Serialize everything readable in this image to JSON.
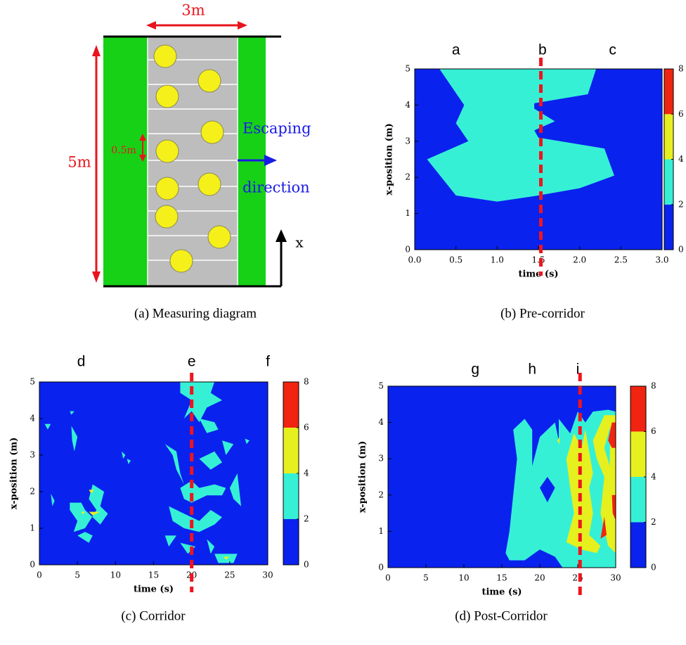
{
  "diagram": {
    "width_label": "3m",
    "height_label": "5m",
    "spacing_label": "0.5m",
    "escape_label_1": "Escaping",
    "escape_label_2": "direction",
    "axis_label": "x",
    "caption": "(a) Measuring diagram"
  },
  "chart_data": [
    {
      "type": "contour",
      "caption": "(b) Pre-corridor",
      "xlabel": "time (s)",
      "ylabel": "x-position (m)",
      "xlim": [
        0,
        3
      ],
      "ylim": [
        0,
        5
      ],
      "xticks": [
        {
          "value": 0,
          "label": "0.0"
        },
        0.5,
        {
          "value": 1,
          "label": "1.0"
        },
        1.5,
        {
          "value": 2,
          "label": "2.0"
        },
        2.5,
        {
          "value": 3,
          "label": "3.0"
        }
      ],
      "yticks": [
        0,
        1,
        2,
        3,
        4,
        5
      ],
      "colorbar": {
        "ticks": [
          0,
          2,
          4,
          6,
          8
        ],
        "colors": [
          "#0a22ee",
          "#36f0d6",
          "#e6f01e",
          "#f02410"
        ]
      },
      "marker_time": 1.53,
      "annotations": [
        {
          "text": "a",
          "x": 0.5
        },
        {
          "text": "b",
          "x": 1.55
        },
        {
          "text": "c",
          "x": 2.4
        }
      ],
      "regions": [
        {
          "band": 1,
          "points": [
            [
              0.3,
              5
            ],
            [
              0.6,
              4
            ],
            [
              0.5,
              3.5
            ],
            [
              0.65,
              3
            ],
            [
              0.15,
              2.5
            ],
            [
              0.5,
              1.5
            ],
            [
              1.0,
              1.33
            ],
            [
              1.5,
              1.5
            ],
            [
              2.0,
              1.7
            ],
            [
              2.42,
              2.05
            ],
            [
              2.3,
              2.8
            ],
            [
              1.5,
              3.1
            ],
            [
              1.45,
              3.3
            ],
            [
              1.7,
              3.55
            ],
            [
              1.45,
              3.9
            ],
            [
              1.45,
              4.05
            ],
            [
              2.1,
              4.3
            ],
            [
              2.2,
              5
            ]
          ]
        }
      ]
    },
    {
      "type": "contour",
      "caption": "(c) Corridor",
      "xlabel": "time (s)",
      "ylabel": "x-position (m)",
      "xlim": [
        0,
        30
      ],
      "ylim": [
        0,
        5
      ],
      "xticks": [
        0,
        5,
        10,
        15,
        20,
        25,
        30
      ],
      "yticks": [
        0,
        1,
        2,
        3,
        4,
        5
      ],
      "colorbar": {
        "ticks": [
          0,
          2,
          4,
          6,
          8
        ],
        "colors": [
          "#0a22ee",
          "#36f0d6",
          "#e6f01e",
          "#f02410"
        ]
      },
      "marker_time": 20,
      "annotations": [
        {
          "text": "d",
          "x": 5.5
        },
        {
          "text": "e",
          "x": 20
        },
        {
          "text": "f",
          "x": 30
        }
      ],
      "regions": [
        {
          "band": 1,
          "points": [
            [
              4,
              1.5
            ],
            [
              5,
              1.2
            ],
            [
              4.5,
              0.9
            ],
            [
              6,
              1.0
            ],
            [
              7.5,
              1.5
            ],
            [
              6.5,
              1.8
            ],
            [
              7,
              2.2
            ],
            [
              8.5,
              2.0
            ],
            [
              8,
              1.6
            ],
            [
              9,
              1.4
            ],
            [
              8,
              1.1
            ],
            [
              6,
              1.5
            ],
            [
              5.5,
              1.7
            ],
            [
              4,
              1.7
            ]
          ]
        },
        {
          "band": 1,
          "points": [
            [
              5,
              0.8
            ],
            [
              6.5,
              0.6
            ],
            [
              7,
              0.8
            ],
            [
              6,
              0.9
            ]
          ]
        },
        {
          "band": 1,
          "points": [
            [
              4.2,
              3.8
            ],
            [
              5,
              3.5
            ],
            [
              4.6,
              3.1
            ],
            [
              4.3,
              3.4
            ]
          ]
        },
        {
          "band": 1,
          "points": [
            [
              4,
              4.2
            ],
            [
              4.6,
              4.2
            ],
            [
              4.2,
              4.1
            ]
          ]
        },
        {
          "band": 1,
          "points": [
            [
              0.7,
              3.85
            ],
            [
              1.5,
              3.85
            ],
            [
              1.1,
              3.7
            ]
          ]
        },
        {
          "band": 1,
          "points": [
            [
              1.5,
              1.95
            ],
            [
              2,
              1.75
            ],
            [
              1.7,
              1.6
            ]
          ]
        },
        {
          "band": 1,
          "points": [
            [
              10.8,
              3.1
            ],
            [
              11.3,
              3.0
            ],
            [
              11,
              2.9
            ]
          ]
        },
        {
          "band": 1,
          "points": [
            [
              11.5,
              2.9
            ],
            [
              12,
              2.85
            ],
            [
              11.7,
              2.75
            ]
          ]
        },
        {
          "band": 1,
          "points": [
            [
              18.5,
              5
            ],
            [
              23,
              5
            ],
            [
              22.5,
              4.7
            ],
            [
              24,
              4.5
            ],
            [
              22,
              4.3
            ],
            [
              21,
              3.9
            ],
            [
              20,
              4.2
            ],
            [
              19,
              4.0
            ],
            [
              20,
              4.5
            ],
            [
              18.5,
              4.7
            ]
          ]
        },
        {
          "band": 1,
          "points": [
            [
              21,
              4.0
            ],
            [
              23,
              3.9
            ],
            [
              23.5,
              3.7
            ],
            [
              22,
              3.6
            ]
          ]
        },
        {
          "band": 1,
          "points": [
            [
              16.5,
              3.3
            ],
            [
              18,
              3.1
            ],
            [
              18.5,
              2.5
            ],
            [
              19,
              2.2
            ],
            [
              18,
              2.6
            ],
            [
              17.5,
              3.0
            ]
          ]
        },
        {
          "band": 1,
          "points": [
            [
              18.5,
              2.1
            ],
            [
              20,
              2.3
            ],
            [
              21,
              2.1
            ],
            [
              23,
              2.2
            ],
            [
              24.5,
              2.1
            ],
            [
              24,
              1.9
            ],
            [
              22,
              1.9
            ],
            [
              20,
              1.7
            ],
            [
              19,
              1.8
            ]
          ]
        },
        {
          "band": 1,
          "points": [
            [
              17,
              1.6
            ],
            [
              19,
              1.4
            ],
            [
              21,
              1.2
            ],
            [
              22.5,
              1.5
            ],
            [
              24,
              1.3
            ],
            [
              23,
              1.1
            ],
            [
              21,
              0.9
            ],
            [
              19,
              1.0
            ],
            [
              17.5,
              1.2
            ]
          ]
        },
        {
          "band": 1,
          "points": [
            [
              16.5,
              0.8
            ],
            [
              18,
              0.8
            ],
            [
              17,
              0.5
            ]
          ]
        },
        {
          "band": 1,
          "points": [
            [
              18.5,
              0.6
            ],
            [
              20.5,
              0.5
            ],
            [
              19.5,
              0.3
            ]
          ]
        },
        {
          "band": 1,
          "points": [
            [
              22,
              0.7
            ],
            [
              23,
              0.5
            ],
            [
              22.5,
              0.3
            ]
          ]
        },
        {
          "band": 1,
          "points": [
            [
              23,
              0.3
            ],
            [
              26,
              0.3
            ],
            [
              25.5,
              0.05
            ],
            [
              23.5,
              0.05
            ]
          ]
        },
        {
          "band": 1,
          "points": [
            [
              21,
              2.9
            ],
            [
              23,
              3.1
            ],
            [
              24,
              2.8
            ],
            [
              22.5,
              2.6
            ]
          ]
        },
        {
          "band": 1,
          "points": [
            [
              25,
              2.1
            ],
            [
              26,
              2.5
            ],
            [
              26.5,
              1.6
            ],
            [
              25.5,
              1.8
            ]
          ]
        },
        {
          "band": 1,
          "points": [
            [
              24,
              3.4
            ],
            [
              25.5,
              3.3
            ],
            [
              24.5,
              3.0
            ]
          ]
        },
        {
          "band": 1,
          "points": [
            [
              27,
              3.45
            ],
            [
              27.6,
              3.4
            ],
            [
              27.2,
              3.3
            ]
          ]
        },
        {
          "band": 2,
          "points": [
            [
              6.5,
              2.05
            ],
            [
              7.2,
              2.05
            ],
            [
              6.8,
              1.95
            ]
          ]
        },
        {
          "band": 2,
          "points": [
            [
              6.5,
              1.45
            ],
            [
              8,
              1.45
            ],
            [
              7,
              1.35
            ]
          ]
        },
        {
          "band": 2,
          "points": [
            [
              5.5,
              1.45
            ],
            [
              6,
              1.45
            ],
            [
              5.7,
              1.38
            ]
          ]
        },
        {
          "band": 2,
          "points": [
            [
              24.2,
              0.22
            ],
            [
              25,
              0.22
            ],
            [
              24.5,
              0.14
            ]
          ]
        }
      ]
    },
    {
      "type": "contour",
      "caption": "(d) Post-Corridor",
      "xlabel": "time (s)",
      "ylabel": "x-position (m)",
      "xlim": [
        0,
        30
      ],
      "ylim": [
        0,
        5
      ],
      "xticks": [
        0,
        5,
        10,
        15,
        20,
        25,
        30
      ],
      "yticks": [
        0,
        1,
        2,
        3,
        4,
        5
      ],
      "colorbar": {
        "ticks": [
          0,
          2,
          4,
          6,
          8
        ],
        "colors": [
          "#0a22ee",
          "#36f0d6",
          "#e6f01e",
          "#f02410"
        ]
      },
      "marker_time": 25.3,
      "annotations": [
        {
          "text": "g",
          "x": 11.5
        },
        {
          "text": "h",
          "x": 19
        },
        {
          "text": "i",
          "x": 25
        }
      ],
      "regions": [
        {
          "band": 1,
          "points": [
            [
              15.5,
              0.4
            ],
            [
              16,
              1.0
            ],
            [
              17,
              3.0
            ],
            [
              16.5,
              3.8
            ],
            [
              18,
              4.1
            ],
            [
              19,
              3.8
            ],
            [
              19,
              2.8
            ],
            [
              20,
              3.6
            ],
            [
              22,
              4.0
            ],
            [
              22.5,
              3.5
            ],
            [
              22.5,
              4.1
            ],
            [
              24,
              3.7
            ],
            [
              25,
              4.3
            ],
            [
              26,
              4.0
            ],
            [
              27,
              4.3
            ],
            [
              29,
              4.35
            ],
            [
              30,
              4.3
            ],
            [
              30,
              0
            ],
            [
              23,
              0
            ],
            [
              22,
              0.3
            ],
            [
              20,
              0.5
            ],
            [
              18,
              0.2
            ],
            [
              16,
              0.2
            ]
          ]
        },
        {
          "band": 0,
          "points": [
            [
              20,
              2.2
            ],
            [
              21,
              1.8
            ],
            [
              22,
              2.2
            ],
            [
              21,
              2.5
            ]
          ]
        },
        {
          "band": 2,
          "points": [
            [
              23.5,
              0.7
            ],
            [
              24.5,
              1.5
            ],
            [
              24,
              2.2
            ],
            [
              23.5,
              3.0
            ],
            [
              24.5,
              3.7
            ],
            [
              25.5,
              3.3
            ],
            [
              26,
              3.8
            ],
            [
              26.5,
              3.2
            ],
            [
              27,
              2.6
            ],
            [
              26.5,
              2.2
            ],
            [
              27,
              1.5
            ],
            [
              26.5,
              0.9
            ],
            [
              28,
              0.6
            ],
            [
              27.5,
              0.4
            ],
            [
              25.5,
              0.5
            ]
          ]
        },
        {
          "band": 2,
          "points": [
            [
              27,
              3.5
            ],
            [
              28.5,
              4.2
            ],
            [
              30,
              4.2
            ],
            [
              30,
              0.4
            ],
            [
              29,
              0.6
            ],
            [
              28,
              1.5
            ],
            [
              28.5,
              2.5
            ],
            [
              27.5,
              3.0
            ]
          ]
        },
        {
          "band": 1,
          "points": [
            [
              28.5,
              3.3
            ],
            [
              29.3,
              3.9
            ],
            [
              29.2,
              2.8
            ]
          ]
        },
        {
          "band": 3,
          "points": [
            [
              29,
              3.5
            ],
            [
              29.5,
              4.0
            ],
            [
              30,
              4.0
            ],
            [
              30,
              3.3
            ],
            [
              29.5,
              3.3
            ]
          ]
        },
        {
          "band": 3,
          "points": [
            [
              28,
              0.8
            ],
            [
              28.5,
              1.4
            ],
            [
              28.8,
              0.9
            ]
          ]
        },
        {
          "band": 3,
          "points": [
            [
              29.5,
              2.0
            ],
            [
              30,
              2.0
            ],
            [
              30,
              1.3
            ],
            [
              29.6,
              1.5
            ]
          ]
        },
        {
          "band": 2,
          "points": [
            [
              22.3,
              3.5
            ],
            [
              22.6,
              3.6
            ],
            [
              22.6,
              3.4
            ]
          ]
        }
      ]
    }
  ]
}
